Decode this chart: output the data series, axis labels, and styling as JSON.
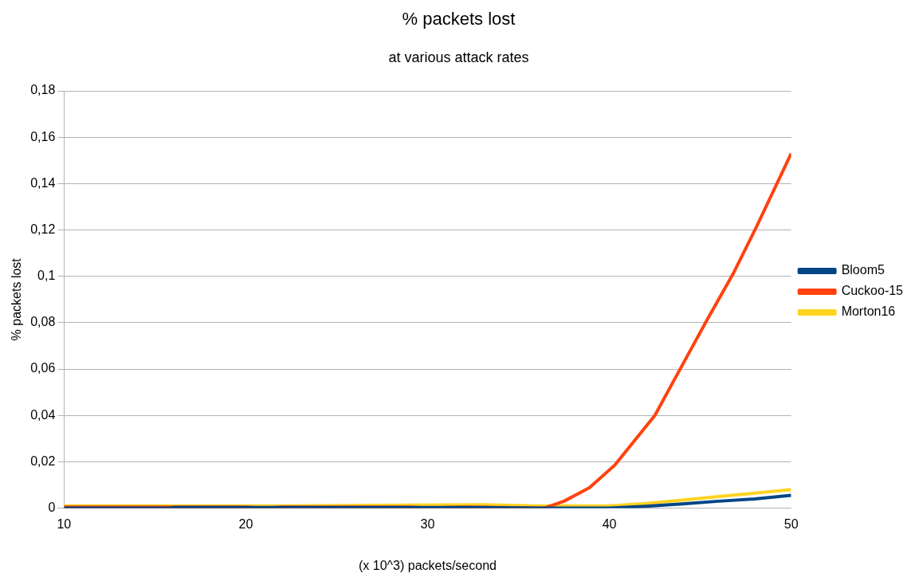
{
  "chart_data": {
    "type": "line",
    "title": "% packets lost",
    "subtitle": "at various attack rates",
    "xlabel": "(x 10^3) packets/second",
    "ylabel": "% packets lost",
    "xlim": [
      10,
      50
    ],
    "xticks": [
      10,
      20,
      30,
      40,
      50
    ],
    "ylim": [
      0,
      0.18
    ],
    "yticks": [
      {
        "value": 0,
        "label": "0"
      },
      {
        "value": 0.02,
        "label": "0,02"
      },
      {
        "value": 0.04,
        "label": "0,04"
      },
      {
        "value": 0.06,
        "label": "0,06"
      },
      {
        "value": 0.08,
        "label": "0,08"
      },
      {
        "value": 0.1,
        "label": "0,1"
      },
      {
        "value": 0.12,
        "label": "0,12"
      },
      {
        "value": 0.14,
        "label": "0,14"
      },
      {
        "value": 0.16,
        "label": "0,16"
      },
      {
        "value": 0.18,
        "label": "0,18"
      }
    ],
    "grid": "y",
    "legend": "right",
    "marker": "none",
    "line_style": "solid",
    "series": [
      {
        "name": "Bloom5",
        "color": "#004586",
        "x": [
          10,
          15.8,
          16,
          33,
          36,
          40,
          42,
          44,
          46,
          48,
          50
        ],
        "values": [
          0,
          0,
          0.0003,
          0.0003,
          0,
          0,
          0.0008,
          0.0018,
          0.003,
          0.004,
          0.0055
        ]
      },
      {
        "name": "Cuckoo-15",
        "color": "#ff420e",
        "x": [
          10,
          20,
          21,
          22,
          29,
          30,
          31,
          32,
          36.4,
          37.5,
          38.9,
          40.3,
          42.5,
          44.1,
          45.4,
          46.8,
          48.1,
          50
        ],
        "values": [
          0.0005,
          0.0005,
          0,
          0.0005,
          0.0005,
          0,
          0.0003,
          0.0005,
          0,
          0.003,
          0.0088,
          0.0186,
          0.04,
          0.063,
          0.0816,
          0.101,
          0.1215,
          0.153
        ]
      },
      {
        "name": "Morton16",
        "color": "#ffd320",
        "x": [
          10,
          22,
          33,
          36,
          40,
          42,
          44,
          46,
          48,
          50
        ],
        "values": [
          0.001,
          0.001,
          0.0015,
          0.001,
          0.001,
          0.002,
          0.0035,
          0.005,
          0.0065,
          0.008
        ]
      }
    ]
  }
}
